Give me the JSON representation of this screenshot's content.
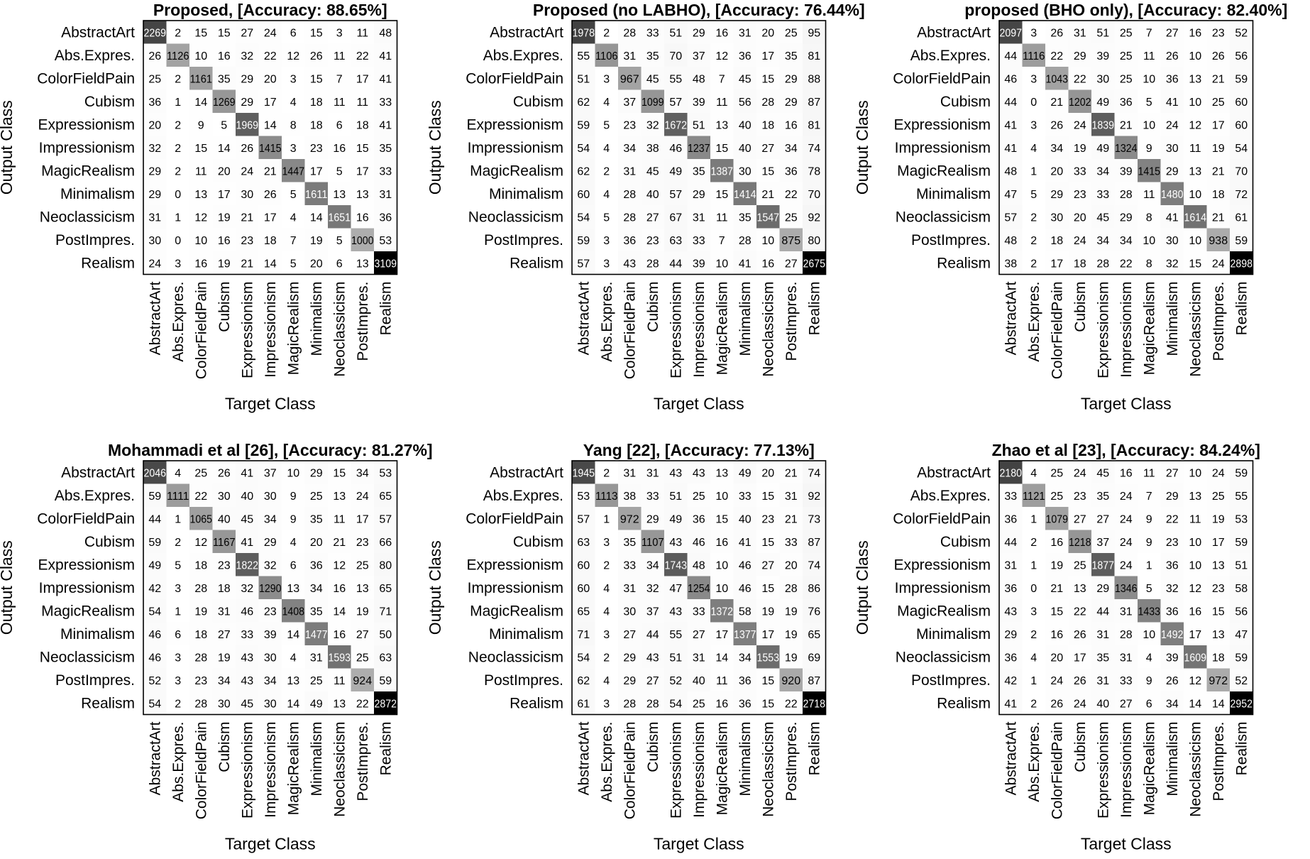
{
  "chart_data": [
    {
      "type": "heatmap",
      "title": "Proposed, [Accuracy: 88.65%]",
      "xlabel": "Target Class",
      "ylabel": "Output Class",
      "x_categories": [
        "AbstractArt",
        "Abs.Expres.",
        "ColorFieldPain",
        "Cubism",
        "Expressionism",
        "Impressionism",
        "MagicRealism",
        "Minimalism",
        "Neoclassicism",
        "PostImpres.",
        "Realism"
      ],
      "y_categories": [
        "AbstractArt",
        "Abs.Expres.",
        "ColorFieldPain",
        "Cubism",
        "Expressionism",
        "Impressionism",
        "MagicRealism",
        "Minimalism",
        "Neoclassicism",
        "PostImpres.",
        "Realism"
      ],
      "values": [
        [
          2269,
          2,
          15,
          15,
          27,
          24,
          6,
          15,
          3,
          11,
          48
        ],
        [
          26,
          1126,
          10,
          16,
          32,
          22,
          12,
          26,
          11,
          22,
          41
        ],
        [
          25,
          2,
          1161,
          35,
          29,
          20,
          3,
          15,
          7,
          17,
          41
        ],
        [
          36,
          1,
          14,
          1269,
          29,
          17,
          4,
          18,
          11,
          11,
          33
        ],
        [
          20,
          2,
          9,
          5,
          1969,
          14,
          8,
          18,
          6,
          18,
          41
        ],
        [
          32,
          2,
          15,
          14,
          26,
          1415,
          3,
          23,
          16,
          15,
          35
        ],
        [
          29,
          2,
          11,
          20,
          24,
          21,
          1447,
          17,
          5,
          17,
          33
        ],
        [
          29,
          0,
          13,
          17,
          30,
          26,
          5,
          1611,
          13,
          13,
          31
        ],
        [
          31,
          1,
          12,
          19,
          21,
          17,
          4,
          14,
          1651,
          16,
          36
        ],
        [
          30,
          0,
          10,
          16,
          23,
          18,
          7,
          19,
          5,
          1000,
          53
        ],
        [
          24,
          3,
          16,
          19,
          21,
          14,
          5,
          20,
          6,
          13,
          3109
        ]
      ]
    },
    {
      "type": "heatmap",
      "title": "Proposed (no LABHO), [Accuracy: 76.44%]",
      "xlabel": "Target Class",
      "ylabel": "Output Class",
      "x_categories": [
        "AbstractArt",
        "Abs.Expres.",
        "ColorFieldPain",
        "Cubism",
        "Expressionism",
        "Impressionism",
        "MagicRealism",
        "Minimalism",
        "Neoclassicism",
        "PostImpres.",
        "Realism"
      ],
      "y_categories": [
        "AbstractArt",
        "Abs.Expres.",
        "ColorFieldPain",
        "Cubism",
        "Expressionism",
        "Impressionism",
        "MagicRealism",
        "Minimalism",
        "Neoclassicism",
        "PostImpres.",
        "Realism"
      ],
      "values": [
        [
          1978,
          2,
          28,
          33,
          51,
          29,
          16,
          31,
          20,
          25,
          95
        ],
        [
          55,
          1106,
          31,
          35,
          70,
          37,
          12,
          36,
          17,
          35,
          81
        ],
        [
          51,
          3,
          967,
          45,
          55,
          48,
          7,
          45,
          15,
          29,
          88
        ],
        [
          62,
          4,
          37,
          1099,
          57,
          39,
          11,
          56,
          28,
          29,
          87
        ],
        [
          59,
          5,
          23,
          32,
          1672,
          51,
          13,
          40,
          18,
          16,
          81
        ],
        [
          54,
          4,
          34,
          38,
          46,
          1237,
          15,
          40,
          27,
          34,
          74
        ],
        [
          62,
          2,
          31,
          45,
          49,
          35,
          1387,
          30,
          15,
          36,
          78
        ],
        [
          60,
          4,
          28,
          40,
          57,
          29,
          15,
          1414,
          21,
          22,
          70
        ],
        [
          54,
          5,
          28,
          27,
          67,
          31,
          11,
          35,
          1547,
          25,
          92
        ],
        [
          59,
          3,
          36,
          23,
          63,
          33,
          7,
          28,
          10,
          875,
          80
        ],
        [
          57,
          3,
          43,
          28,
          44,
          39,
          10,
          41,
          16,
          27,
          2675
        ]
      ]
    },
    {
      "type": "heatmap",
      "title": "proposed (BHO only), [Accuracy: 82.40%]",
      "xlabel": "Target Class",
      "ylabel": "Output Class",
      "x_categories": [
        "AbstractArt",
        "Abs.Expres.",
        "ColorFieldPain",
        "Cubism",
        "Expressionism",
        "Impressionism",
        "MagicRealism",
        "Minimalism",
        "Neoclassicism",
        "PostImpres.",
        "Realism"
      ],
      "y_categories": [
        "AbstractArt",
        "Abs.Expres.",
        "ColorFieldPain",
        "Cubism",
        "Expressionism",
        "Impressionism",
        "MagicRealism",
        "Minimalism",
        "Neoclassicism",
        "PostImpres.",
        "Realism"
      ],
      "values": [
        [
          2097,
          3,
          26,
          31,
          51,
          25,
          7,
          27,
          16,
          23,
          52
        ],
        [
          44,
          1116,
          22,
          29,
          39,
          25,
          11,
          26,
          10,
          26,
          56
        ],
        [
          46,
          3,
          1043,
          22,
          30,
          25,
          10,
          36,
          13,
          21,
          59
        ],
        [
          44,
          0,
          21,
          1202,
          49,
          36,
          5,
          41,
          10,
          25,
          60
        ],
        [
          41,
          3,
          26,
          24,
          1839,
          21,
          10,
          24,
          12,
          17,
          60
        ],
        [
          41,
          4,
          34,
          19,
          49,
          1324,
          9,
          30,
          11,
          19,
          54
        ],
        [
          48,
          1,
          20,
          33,
          34,
          39,
          1415,
          29,
          13,
          21,
          70
        ],
        [
          47,
          5,
          29,
          23,
          33,
          28,
          11,
          1480,
          10,
          18,
          72
        ],
        [
          57,
          2,
          30,
          20,
          45,
          29,
          8,
          41,
          1614,
          21,
          61
        ],
        [
          48,
          2,
          18,
          24,
          34,
          34,
          10,
          30,
          10,
          938,
          59
        ],
        [
          38,
          2,
          17,
          18,
          28,
          22,
          8,
          32,
          15,
          24,
          2898
        ]
      ]
    },
    {
      "type": "heatmap",
      "title": "Mohammadi et al [26], [Accuracy: 81.27%]",
      "xlabel": "Target Class",
      "ylabel": "Output Class",
      "x_categories": [
        "AbstractArt",
        "Abs.Expres.",
        "ColorFieldPain",
        "Cubism",
        "Expressionism",
        "Impressionism",
        "MagicRealism",
        "Minimalism",
        "Neoclassicism",
        "PostImpres.",
        "Realism"
      ],
      "y_categories": [
        "AbstractArt",
        "Abs.Expres.",
        "ColorFieldPain",
        "Cubism",
        "Expressionism",
        "Impressionism",
        "MagicRealism",
        "Minimalism",
        "Neoclassicism",
        "PostImpres.",
        "Realism"
      ],
      "values": [
        [
          2046,
          4,
          25,
          26,
          41,
          37,
          10,
          29,
          15,
          34,
          53
        ],
        [
          59,
          1111,
          22,
          30,
          40,
          30,
          9,
          25,
          13,
          24,
          65
        ],
        [
          44,
          1,
          1065,
          40,
          45,
          34,
          9,
          35,
          11,
          17,
          57
        ],
        [
          59,
          2,
          12,
          1167,
          41,
          29,
          4,
          20,
          21,
          23,
          66
        ],
        [
          49,
          5,
          18,
          23,
          1822,
          32,
          6,
          36,
          12,
          25,
          80
        ],
        [
          42,
          3,
          28,
          18,
          32,
          1290,
          13,
          34,
          16,
          13,
          65
        ],
        [
          54,
          1,
          19,
          31,
          46,
          23,
          1408,
          35,
          14,
          19,
          71
        ],
        [
          46,
          6,
          18,
          27,
          33,
          39,
          14,
          1477,
          16,
          27,
          50
        ],
        [
          46,
          3,
          28,
          19,
          43,
          30,
          4,
          31,
          1593,
          25,
          63
        ],
        [
          52,
          3,
          23,
          34,
          43,
          34,
          13,
          25,
          11,
          924,
          59
        ],
        [
          54,
          2,
          28,
          30,
          45,
          30,
          14,
          49,
          13,
          22,
          2872
        ]
      ]
    },
    {
      "type": "heatmap",
      "title": "Yang [22], [Accuracy: 77.13%]",
      "xlabel": "Target Class",
      "ylabel": "Output Class",
      "x_categories": [
        "AbstractArt",
        "Abs.Expres.",
        "ColorFieldPain",
        "Cubism",
        "Expressionism",
        "Impressionism",
        "MagicRealism",
        "Minimalism",
        "Neoclassicism",
        "PostImpres.",
        "Realism"
      ],
      "y_categories": [
        "AbstractArt",
        "Abs.Expres.",
        "ColorFieldPain",
        "Cubism",
        "Expressionism",
        "Impressionism",
        "MagicRealism",
        "Minimalism",
        "Neoclassicism",
        "PostImpres.",
        "Realism"
      ],
      "values": [
        [
          1945,
          2,
          31,
          31,
          43,
          43,
          13,
          49,
          20,
          21,
          74
        ],
        [
          53,
          1113,
          38,
          33,
          51,
          25,
          10,
          33,
          15,
          31,
          92
        ],
        [
          57,
          1,
          972,
          29,
          49,
          36,
          15,
          40,
          23,
          21,
          73
        ],
        [
          63,
          3,
          35,
          1107,
          43,
          46,
          16,
          41,
          15,
          33,
          87
        ],
        [
          60,
          2,
          33,
          34,
          1743,
          48,
          10,
          46,
          27,
          20,
          74
        ],
        [
          60,
          4,
          31,
          32,
          47,
          1254,
          10,
          46,
          15,
          28,
          86
        ],
        [
          65,
          4,
          30,
          37,
          43,
          33,
          1372,
          58,
          19,
          19,
          76
        ],
        [
          71,
          3,
          27,
          44,
          55,
          27,
          17,
          1377,
          17,
          19,
          65
        ],
        [
          54,
          2,
          29,
          43,
          51,
          31,
          14,
          34,
          1553,
          19,
          69
        ],
        [
          62,
          4,
          29,
          27,
          52,
          40,
          11,
          36,
          15,
          920,
          87
        ],
        [
          61,
          3,
          28,
          28,
          54,
          25,
          16,
          36,
          15,
          22,
          2718
        ]
      ]
    },
    {
      "type": "heatmap",
      "title": "Zhao et al [23], [Accuracy: 84.24%]",
      "xlabel": "Target Class",
      "ylabel": "Output Class",
      "x_categories": [
        "AbstractArt",
        "Abs.Expres.",
        "ColorFieldPain",
        "Cubism",
        "Expressionism",
        "Impressionism",
        "MagicRealism",
        "Minimalism",
        "Neoclassicism",
        "PostImpres.",
        "Realism"
      ],
      "y_categories": [
        "AbstractArt",
        "Abs.Expres.",
        "ColorFieldPain",
        "Cubism",
        "Expressionism",
        "Impressionism",
        "MagicRealism",
        "Minimalism",
        "Neoclassicism",
        "PostImpres.",
        "Realism"
      ],
      "values": [
        [
          2180,
          4,
          25,
          24,
          45,
          16,
          11,
          27,
          10,
          24,
          59
        ],
        [
          33,
          1121,
          25,
          23,
          35,
          24,
          7,
          29,
          13,
          25,
          55
        ],
        [
          36,
          1,
          1079,
          27,
          27,
          24,
          9,
          22,
          11,
          19,
          53
        ],
        [
          44,
          2,
          16,
          1218,
          37,
          24,
          9,
          23,
          10,
          17,
          59
        ],
        [
          31,
          1,
          19,
          25,
          1877,
          24,
          1,
          36,
          10,
          13,
          51
        ],
        [
          36,
          0,
          21,
          13,
          29,
          1346,
          5,
          32,
          12,
          23,
          58
        ],
        [
          43,
          3,
          15,
          22,
          44,
          31,
          1433,
          36,
          16,
          15,
          56
        ],
        [
          29,
          2,
          16,
          26,
          31,
          28,
          10,
          1492,
          17,
          13,
          47
        ],
        [
          36,
          4,
          20,
          17,
          35,
          31,
          4,
          39,
          1609,
          18,
          59
        ],
        [
          42,
          1,
          24,
          26,
          31,
          33,
          9,
          26,
          12,
          972,
          52
        ],
        [
          41,
          2,
          26,
          24,
          40,
          27,
          6,
          34,
          14,
          14,
          2952
        ]
      ]
    }
  ]
}
